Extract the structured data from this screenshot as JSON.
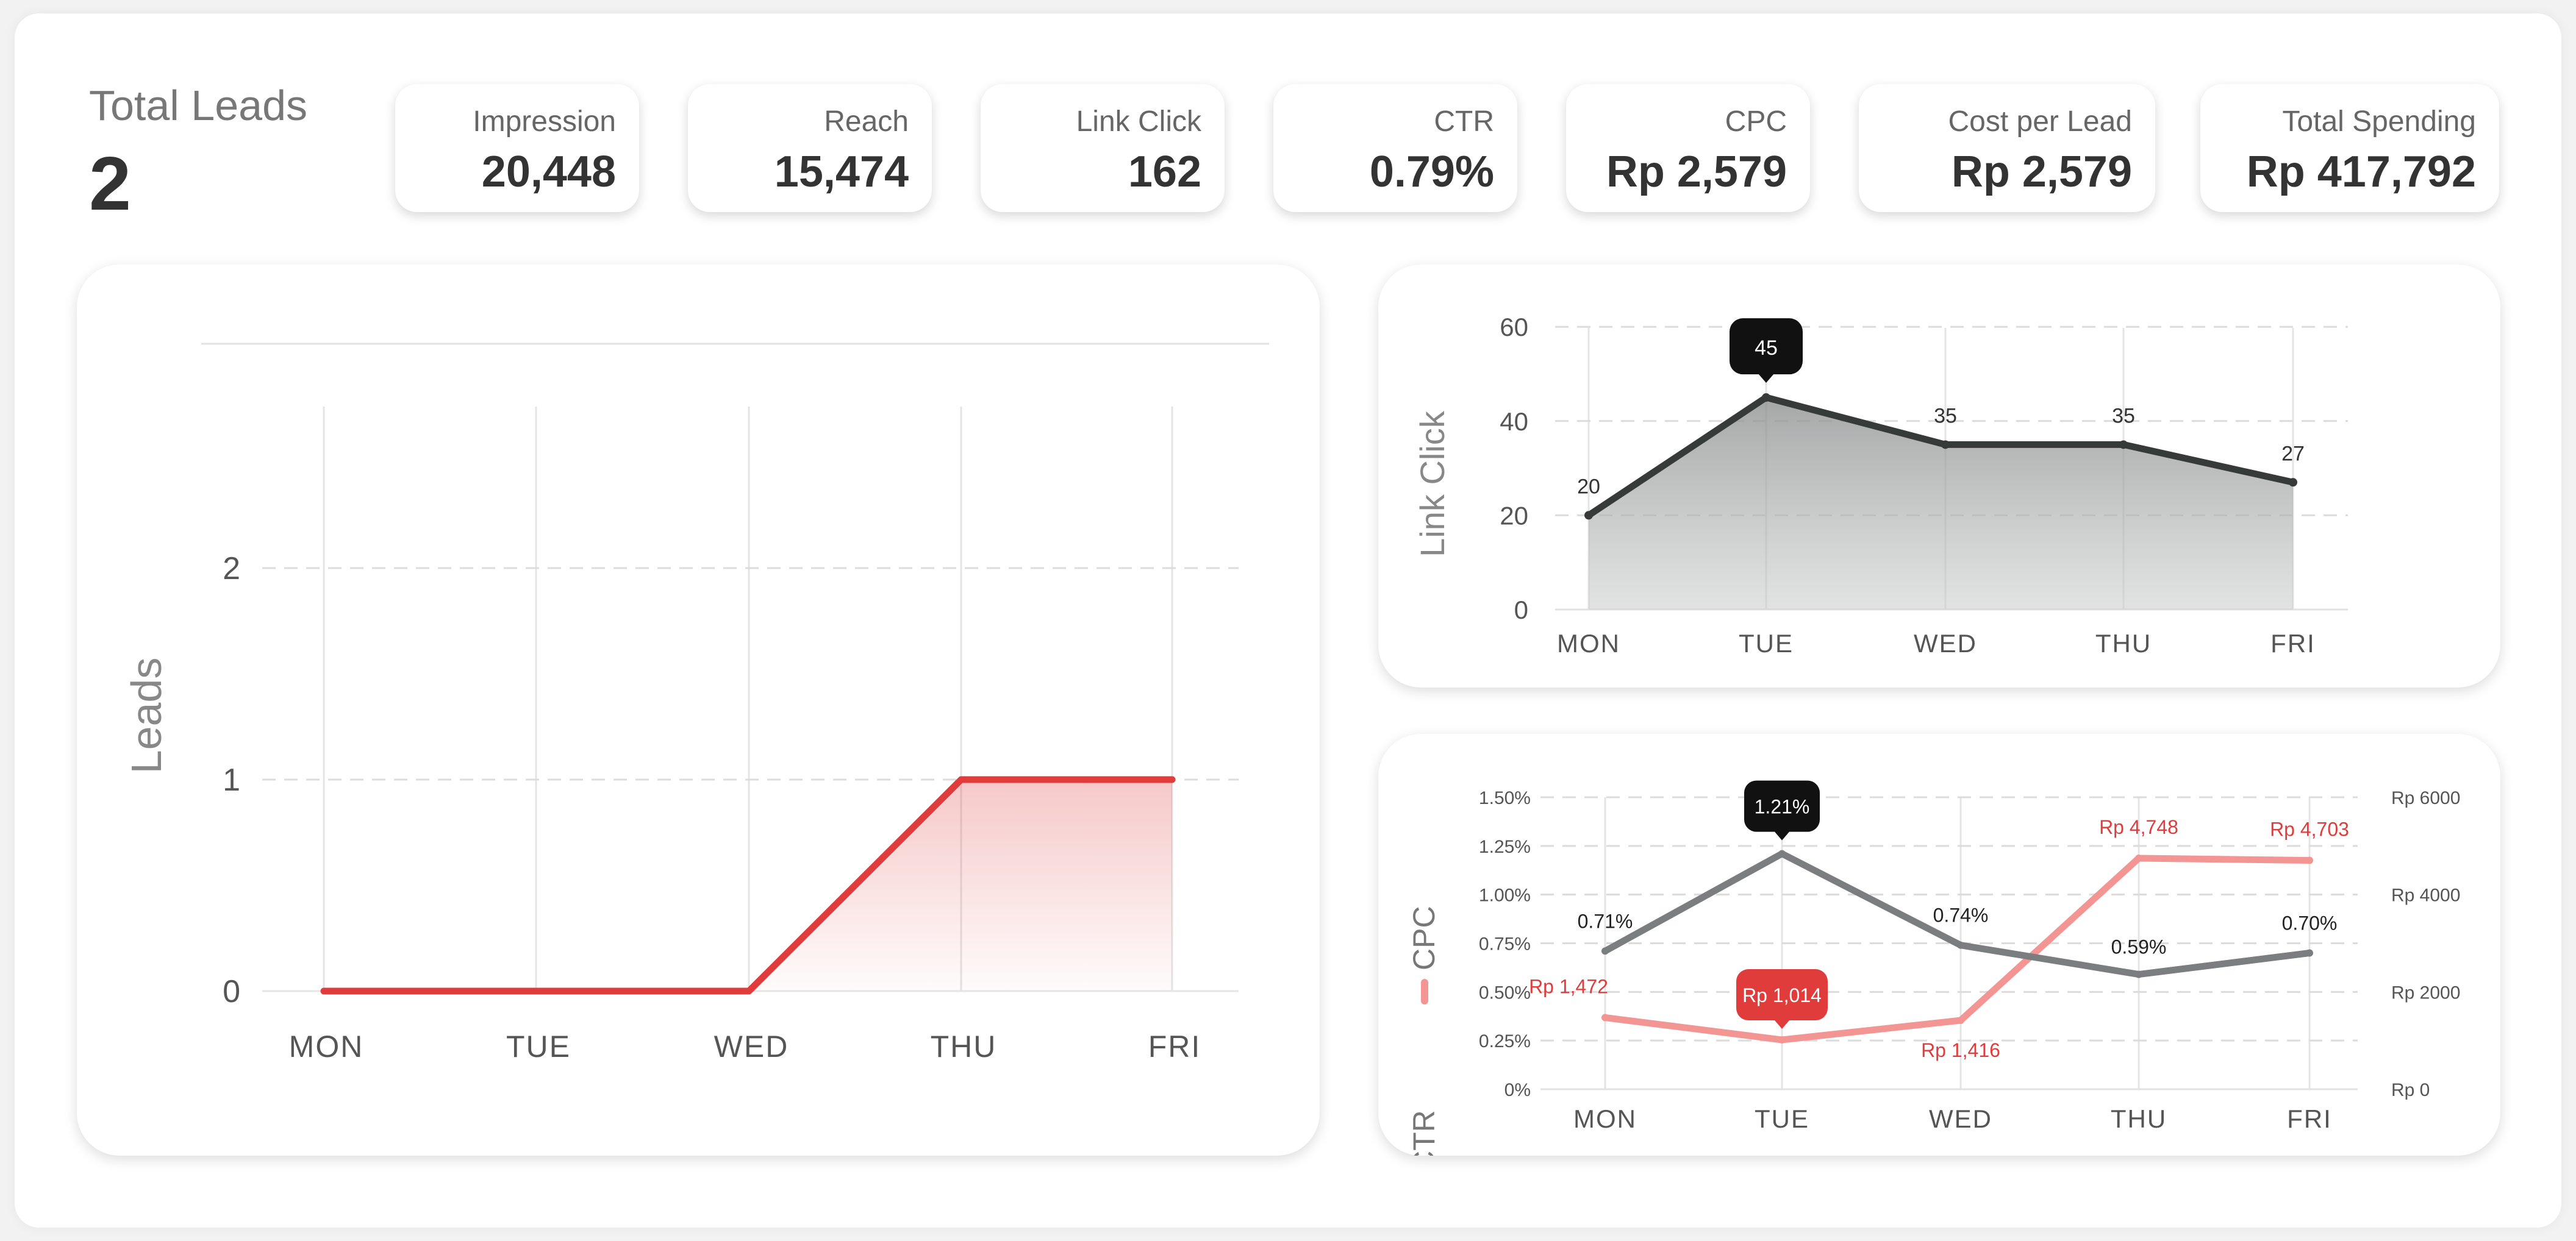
{
  "summary": {
    "total_label": "Total Leads",
    "total_value": "2"
  },
  "kpis": [
    {
      "label": "Impression",
      "value": "20,448"
    },
    {
      "label": "Reach",
      "value": "15,474"
    },
    {
      "label": "Link Click",
      "value": "162"
    },
    {
      "label": "CTR",
      "value": "0.79%"
    },
    {
      "label": "CPC",
      "value": "Rp 2,579"
    },
    {
      "label": "Cost per Lead",
      "value": "Rp 2,579"
    },
    {
      "label": "Total Spending",
      "value": "Rp 417,792"
    }
  ],
  "colors": {
    "red": "#e03c3c",
    "red_light": "#f29593",
    "dark": "#363a39",
    "gray": "#7b7e7f",
    "tooltip": "#111111"
  },
  "chart_data": [
    {
      "type": "area",
      "categories": [
        "MON",
        "TUE",
        "WED",
        "THU",
        "FRI"
      ],
      "series": [
        {
          "values": [
            0,
            0,
            0,
            1,
            1
          ],
          "color": "#e03c3c"
        }
      ],
      "ylabel": "Leads",
      "yticks": [
        0,
        1,
        2
      ],
      "ylim": [
        0,
        2.15
      ],
      "grid": "dashed horizontal, solid vertical"
    },
    {
      "type": "area",
      "categories": [
        "MON",
        "TUE",
        "WED",
        "THU",
        "FRI"
      ],
      "series": [
        {
          "values": [
            20,
            45,
            35,
            35,
            27
          ],
          "color": "#363a39"
        }
      ],
      "data_labels": [
        "20",
        "45",
        "35",
        "35",
        "27"
      ],
      "highlight": {
        "index": 1,
        "label": "45"
      },
      "ylabel": "Link Click",
      "yticks": [
        0,
        20,
        40,
        60
      ],
      "ylim": [
        0,
        60
      ]
    },
    {
      "type": "line",
      "categories": [
        "MON",
        "TUE",
        "WED",
        "THU",
        "FRI"
      ],
      "series": [
        {
          "name": "CTR",
          "axis": "left",
          "values": [
            0.71,
            1.21,
            0.74,
            0.59,
            0.7
          ],
          "labels": [
            "0.71%",
            "1.21%",
            "0.74%",
            "0.59%",
            "0.70%"
          ],
          "color": "#7b7e7f"
        },
        {
          "name": "CPC",
          "axis": "right",
          "values": [
            1472,
            1014,
            1416,
            4748,
            4703
          ],
          "labels": [
            "Rp 1,472",
            "Rp 1,014",
            "Rp 1,416",
            "Rp 4,748",
            "Rp 4,703"
          ],
          "color": "#f29593"
        }
      ],
      "highlight": {
        "index": 1
      },
      "yticks_left": [
        "0%",
        "0.25%",
        "0.50%",
        "0.75%",
        "1.00%",
        "1.25%",
        "1.50%"
      ],
      "ylim_left": [
        0,
        1.5
      ],
      "yticks_right": [
        "Rp 0",
        "Rp 2000",
        "Rp 4000",
        "Rp 6000"
      ],
      "ylim_right": [
        0,
        6000
      ]
    }
  ]
}
